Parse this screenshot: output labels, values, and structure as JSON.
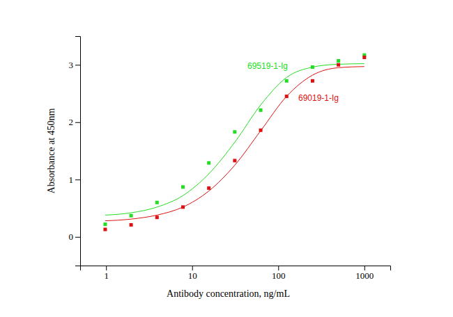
{
  "chart_data": {
    "type": "scatter",
    "x_label": "Antibody concentration, ng/mL",
    "y_label": "Absorbance at 450nm",
    "log": "x",
    "grid": false,
    "xlim": [
      0.5,
      2000
    ],
    "xticks": [
      1,
      10,
      100,
      1000
    ],
    "ylim": [
      -0.5,
      3.5
    ],
    "yticks": [
      0,
      1,
      2,
      3
    ],
    "x": [
      0.977,
      1.953,
      3.906,
      7.8125,
      15.625,
      31.25,
      62.5,
      125,
      250,
      500,
      1000
    ],
    "series": [
      {
        "name": "69519-1-Ig",
        "color": "#22dd22",
        "marker": "square",
        "values": [
          0.22,
          0.37,
          0.6,
          0.87,
          1.29,
          1.83,
          2.21,
          2.72,
          2.96,
          3.07,
          3.17
        ],
        "fit": [
          0.38,
          0.42,
          0.52,
          0.72,
          1.1,
          1.65,
          2.3,
          2.78,
          2.96,
          3.01,
          3.02
        ]
      },
      {
        "name": "69019-1-Ig",
        "color": "#dd1111",
        "marker": "square",
        "values": [
          0.13,
          0.21,
          0.34,
          0.52,
          0.85,
          1.33,
          1.86,
          2.45,
          2.72,
          3.0,
          3.13
        ],
        "fit": [
          0.28,
          0.31,
          0.38,
          0.52,
          0.8,
          1.25,
          1.85,
          2.45,
          2.82,
          2.95,
          2.97
        ]
      }
    ]
  }
}
